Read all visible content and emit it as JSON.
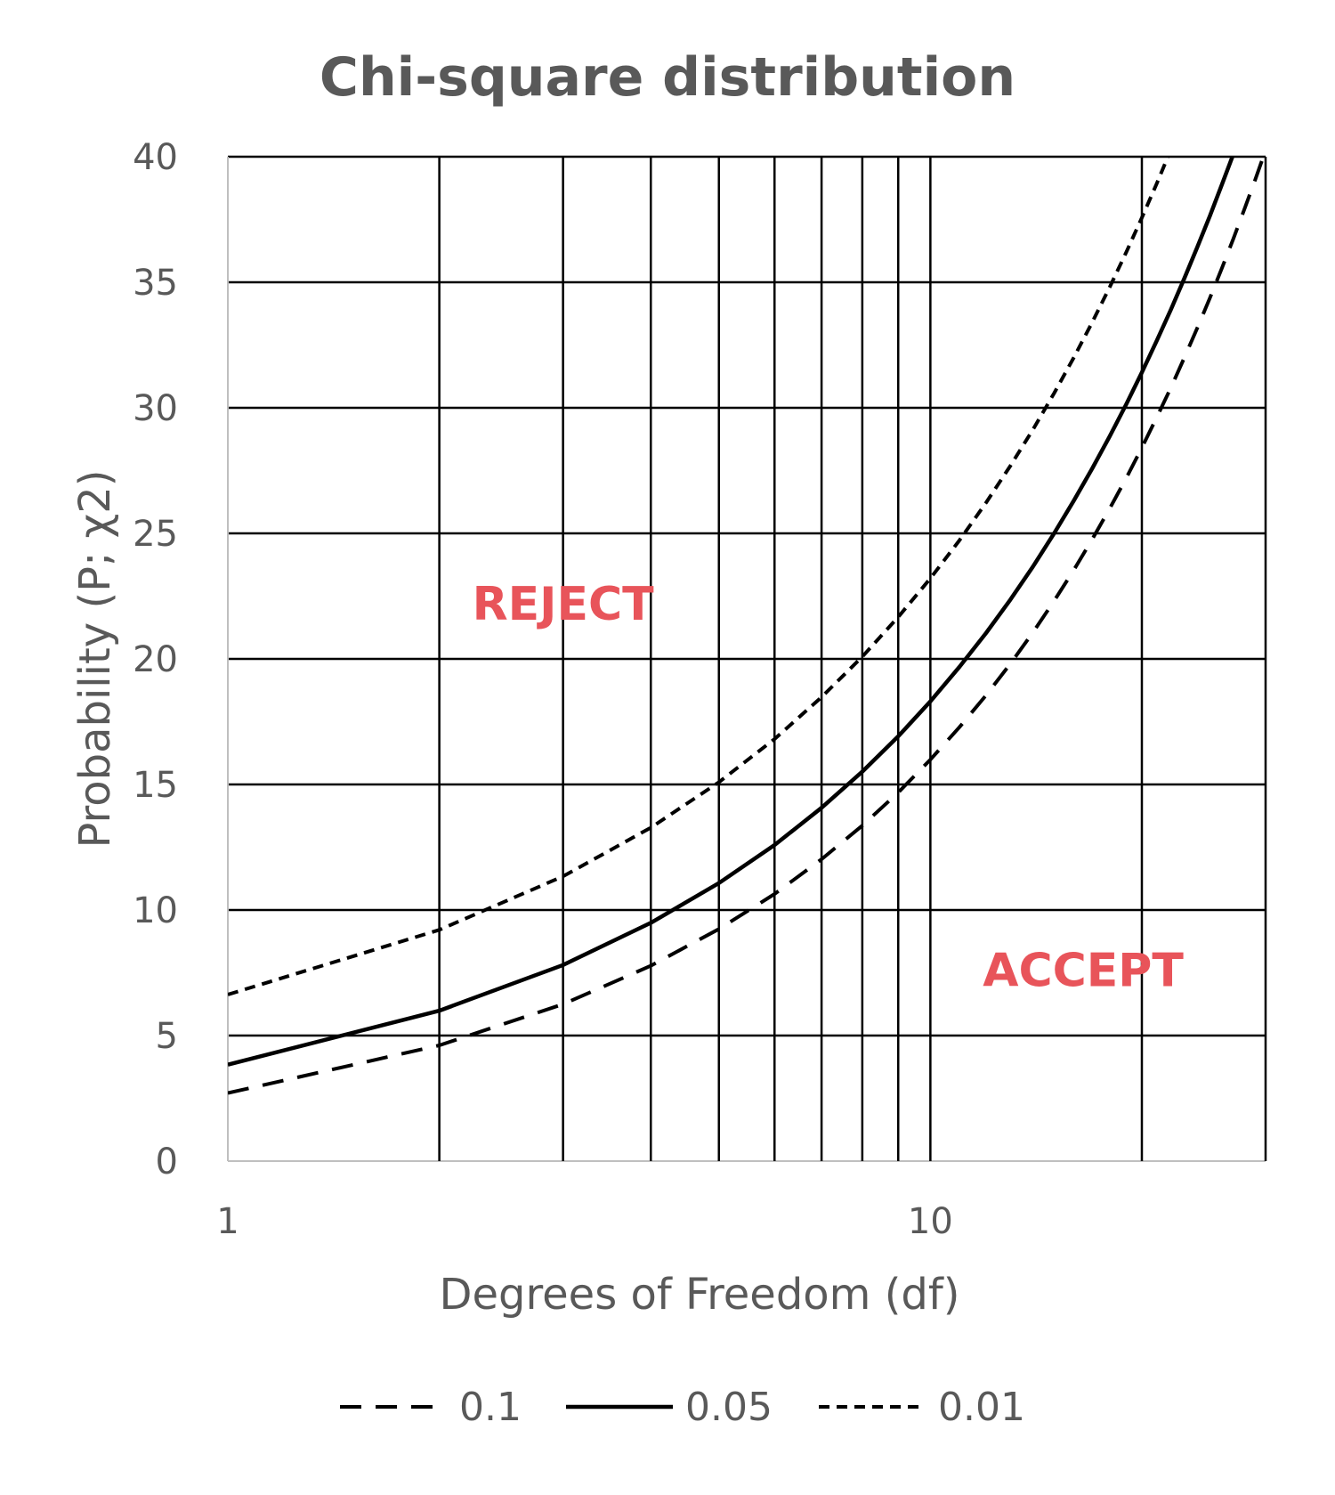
{
  "chart_data": {
    "type": "line",
    "title": "Chi-square distribution",
    "xlabel": "Degrees of Freedom (df)",
    "ylabel": "Probability (P; χ2)",
    "x_scale": "log",
    "xlim": [
      1,
      30
    ],
    "ylim": [
      0,
      40
    ],
    "x_tick_labels": [
      {
        "value": 1,
        "label": "1"
      },
      {
        "value": 10,
        "label": "10"
      }
    ],
    "x_gridlines": [
      1,
      2,
      3,
      4,
      5,
      6,
      7,
      8,
      9,
      10,
      20,
      30
    ],
    "y_ticks": [
      0,
      5,
      10,
      15,
      20,
      25,
      30,
      35,
      40
    ],
    "grid": true,
    "legend_position": "bottom",
    "annotations": [
      {
        "text": "REJECT",
        "x": 3,
        "y": 22.2,
        "color": "#E8545A"
      },
      {
        "text": "ACCEPT",
        "x": 16.5,
        "y": 7.6,
        "color": "#E8545A"
      }
    ],
    "series": [
      {
        "name": "0.1",
        "style": "dashed",
        "x": [
          1,
          2,
          3,
          4,
          5,
          6,
          7,
          8,
          9,
          10,
          11,
          12,
          13,
          14,
          15,
          16,
          17,
          18,
          19,
          20,
          21,
          22,
          23,
          24,
          25,
          26,
          27,
          28,
          29,
          30
        ],
        "values": [
          2.71,
          4.61,
          6.25,
          7.78,
          9.24,
          10.64,
          12.02,
          13.36,
          14.68,
          15.99,
          17.28,
          18.55,
          19.81,
          21.06,
          22.31,
          23.54,
          24.77,
          25.99,
          27.2,
          28.41,
          29.62,
          30.81,
          32.01,
          33.2,
          34.38,
          35.56,
          36.74,
          37.92,
          39.09,
          40.26
        ]
      },
      {
        "name": "0.05",
        "style": "solid",
        "x": [
          1,
          2,
          3,
          4,
          5,
          6,
          7,
          8,
          9,
          10,
          11,
          12,
          13,
          14,
          15,
          16,
          17,
          18,
          19,
          20,
          21,
          22,
          23,
          24,
          25,
          26,
          27,
          28
        ],
        "values": [
          3.84,
          5.99,
          7.81,
          9.49,
          11.07,
          12.59,
          14.07,
          15.51,
          16.92,
          18.31,
          19.68,
          21.03,
          22.36,
          23.68,
          25.0,
          26.3,
          27.59,
          28.87,
          30.14,
          31.41,
          32.67,
          33.92,
          35.17,
          36.42,
          37.65,
          38.89,
          40.11,
          41.34
        ]
      },
      {
        "name": "0.01",
        "style": "dotted",
        "x": [
          1,
          2,
          3,
          4,
          5,
          6,
          7,
          8,
          9,
          10,
          11,
          12,
          13,
          14,
          15,
          16,
          17,
          18,
          19,
          20,
          21,
          22
        ],
        "values": [
          6.63,
          9.21,
          11.34,
          13.28,
          15.09,
          16.81,
          18.48,
          20.09,
          21.67,
          23.21,
          24.72,
          26.22,
          27.69,
          29.14,
          30.58,
          32.0,
          33.41,
          34.81,
          36.19,
          37.57,
          38.93,
          40.29
        ]
      }
    ]
  }
}
